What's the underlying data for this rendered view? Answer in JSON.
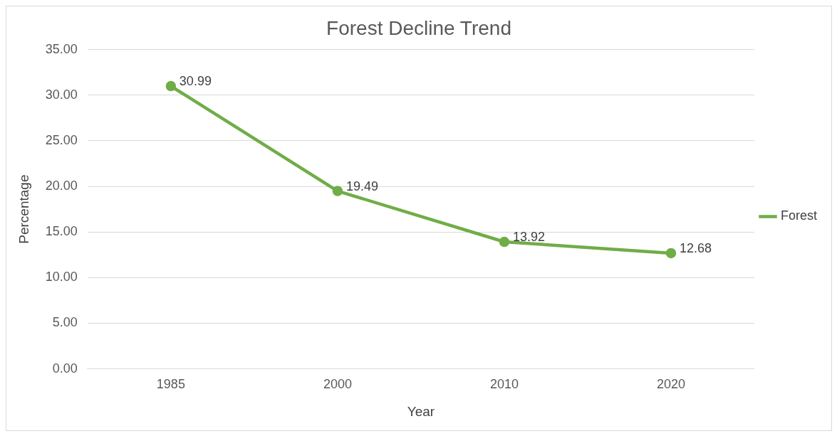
{
  "chart_data": {
    "type": "line",
    "title": "Forest Decline Trend",
    "xlabel": "Year",
    "ylabel": "Percentage",
    "categories": [
      "1985",
      "2000",
      "2010",
      "2020"
    ],
    "series": [
      {
        "name": "Forest",
        "color": "#70ad47",
        "values": [
          30.99,
          19.49,
          13.92,
          12.68
        ]
      }
    ],
    "ylim": [
      0,
      35
    ],
    "yticks": [
      {
        "value": 0,
        "label": "0.00"
      },
      {
        "value": 5,
        "label": "5.00"
      },
      {
        "value": 10,
        "label": "10.00"
      },
      {
        "value": 15,
        "label": "15.00"
      },
      {
        "value": 20,
        "label": "20.00"
      },
      {
        "value": 25,
        "label": "25.00"
      },
      {
        "value": 30,
        "label": "30.00"
      },
      {
        "value": 35,
        "label": "35.00"
      }
    ],
    "grid": "y",
    "legend": "right",
    "marker": "circle",
    "line_style": "solid",
    "data_labels": true
  }
}
